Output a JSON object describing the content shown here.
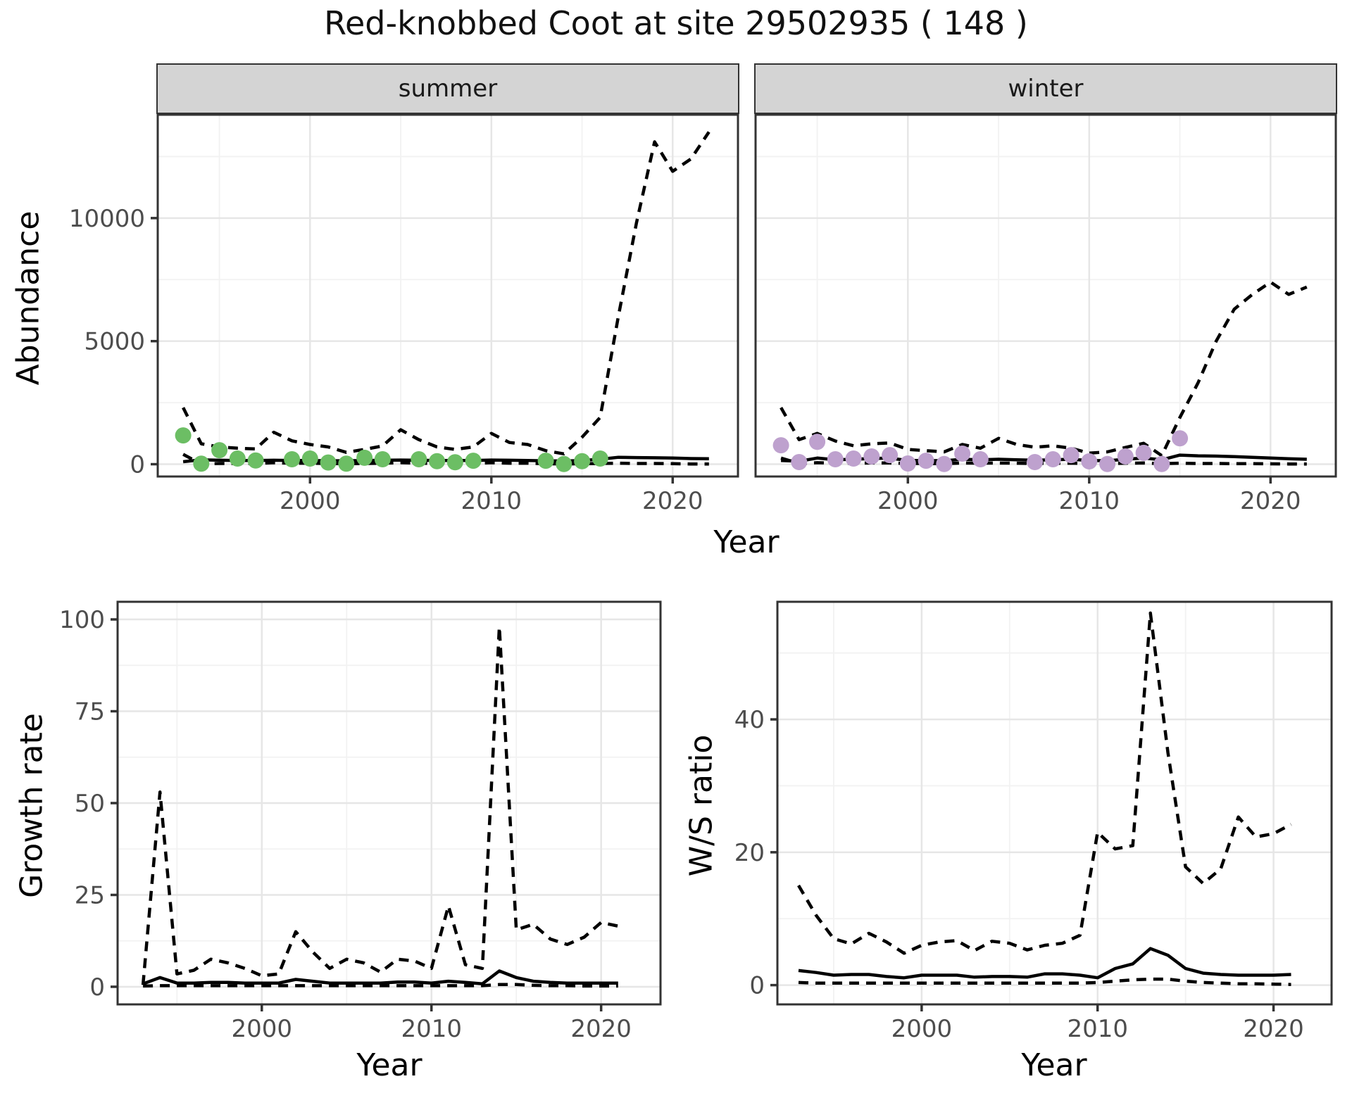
{
  "title": "Red-knobbed Coot at site 29502935 ( 148 )",
  "facets": {
    "summer": "summer",
    "winter": "winter"
  },
  "axes": {
    "abundance": "Abundance",
    "year": "Year",
    "growth_rate": "Growth rate",
    "ws_ratio": "W/S ratio"
  },
  "colors": {
    "summer_point": "#6cbe64",
    "winter_point": "#bea1ce",
    "line": "#000000",
    "strip_bg": "#d4d4d4",
    "grid_major": "#e6e6e6",
    "grid_minor": "#f2f2f2",
    "axis_text": "#4d4d4d",
    "panel_border": "#333333"
  },
  "chart_data": [
    {
      "id": "abundance-summer",
      "type": "line",
      "facet": "summer",
      "xlabel": "Year",
      "ylabel": "Abundance",
      "x_ticks": [
        2000,
        2010,
        2020
      ],
      "y_ticks": [
        0,
        5000,
        10000
      ],
      "xlim": [
        1991.6,
        2023.6
      ],
      "ylim": [
        -500,
        14200
      ],
      "series": [
        {
          "name": "upper_ci",
          "style": "dashed",
          "x": [
            1993,
            1994,
            1995,
            1996,
            1997,
            1998,
            1999,
            2000,
            2001,
            2002,
            2003,
            2004,
            2005,
            2006,
            2007,
            2008,
            2009,
            2010,
            2011,
            2012,
            2013,
            2014,
            2015,
            2016,
            2017,
            2018,
            2019,
            2020,
            2021,
            2022
          ],
          "y": [
            2300,
            830,
            700,
            650,
            620,
            1300,
            950,
            800,
            700,
            480,
            600,
            740,
            1400,
            1000,
            700,
            600,
            700,
            1250,
            880,
            800,
            550,
            420,
            1100,
            1900,
            6000,
            9800,
            13100,
            11900,
            12400,
            13500
          ]
        },
        {
          "name": "lower_ci",
          "style": "dashed",
          "x": [
            1993,
            1994,
            1995,
            1996,
            1997,
            1998,
            1999,
            2000,
            2001,
            2002,
            2003,
            2004,
            2005,
            2006,
            2007,
            2008,
            2009,
            2010,
            2011,
            2012,
            2013,
            2014,
            2015,
            2016,
            2017,
            2018,
            2019,
            2020,
            2021,
            2022
          ],
          "y": [
            400,
            10,
            30,
            30,
            30,
            60,
            40,
            40,
            30,
            20,
            30,
            40,
            60,
            40,
            30,
            30,
            30,
            60,
            40,
            40,
            20,
            10,
            20,
            30,
            40,
            30,
            30,
            20,
            10,
            10
          ]
        },
        {
          "name": "fit",
          "style": "solid",
          "x": [
            1993,
            1994,
            1995,
            1996,
            1997,
            1998,
            1999,
            2000,
            2001,
            2002,
            2003,
            2004,
            2005,
            2006,
            2007,
            2008,
            2009,
            2010,
            2011,
            2012,
            2013,
            2014,
            2015,
            2016,
            2017,
            2018,
            2019,
            2020,
            2021,
            2022
          ],
          "y": [
            100,
            180,
            160,
            150,
            150,
            160,
            150,
            150,
            140,
            140,
            150,
            160,
            170,
            160,
            150,
            150,
            150,
            170,
            160,
            150,
            140,
            130,
            150,
            200,
            280,
            270,
            260,
            250,
            230,
            220
          ]
        },
        {
          "name": "observed",
          "style": "points",
          "color": "#6cbe64",
          "x": [
            1993,
            1994,
            1995,
            1996,
            1997,
            1999,
            2000,
            2001,
            2002,
            2003,
            2004,
            2006,
            2007,
            2008,
            2009,
            2013,
            2014,
            2015,
            2016
          ],
          "y": [
            1170,
            20,
            570,
            230,
            150,
            200,
            230,
            70,
            20,
            260,
            200,
            200,
            120,
            80,
            140,
            140,
            10,
            120,
            230
          ]
        }
      ]
    },
    {
      "id": "abundance-winter",
      "type": "line",
      "facet": "winter",
      "xlabel": "Year",
      "ylabel": "Abundance",
      "x_ticks": [
        2000,
        2010,
        2020
      ],
      "y_ticks": [
        0,
        5000,
        10000
      ],
      "xlim": [
        1991.6,
        2023.6
      ],
      "ylim": [
        -500,
        14200
      ],
      "series": [
        {
          "name": "upper_ci",
          "style": "dashed",
          "x": [
            1993,
            1994,
            1995,
            1996,
            1997,
            1998,
            1999,
            2000,
            2001,
            2002,
            2003,
            2004,
            2005,
            2006,
            2007,
            2008,
            2009,
            2010,
            2011,
            2012,
            2013,
            2014,
            2015,
            2016,
            2017,
            2018,
            2019,
            2020,
            2021,
            2022
          ],
          "y": [
            2300,
            1000,
            1250,
            940,
            750,
            830,
            860,
            600,
            550,
            500,
            800,
            650,
            1050,
            800,
            690,
            750,
            650,
            450,
            500,
            680,
            850,
            350,
            1900,
            3300,
            5000,
            6300,
            6900,
            7400,
            6900,
            7200
          ]
        },
        {
          "name": "lower_ci",
          "style": "dashed",
          "x": [
            1993,
            1994,
            1995,
            1996,
            1997,
            1998,
            1999,
            2000,
            2001,
            2002,
            2003,
            2004,
            2005,
            2006,
            2007,
            2008,
            2009,
            2010,
            2011,
            2012,
            2013,
            2014,
            2015,
            2016,
            2017,
            2018,
            2019,
            2020,
            2021,
            2022
          ],
          "y": [
            250,
            30,
            60,
            40,
            40,
            50,
            50,
            30,
            30,
            20,
            50,
            40,
            50,
            40,
            30,
            40,
            40,
            30,
            20,
            40,
            50,
            20,
            40,
            30,
            30,
            20,
            20,
            15,
            10,
            10
          ]
        },
        {
          "name": "fit",
          "style": "solid",
          "x": [
            1993,
            1994,
            1995,
            1996,
            1997,
            1998,
            1999,
            2000,
            2001,
            2002,
            2003,
            2004,
            2005,
            2006,
            2007,
            2008,
            2009,
            2010,
            2011,
            2012,
            2013,
            2014,
            2015,
            2016,
            2017,
            2018,
            2019,
            2020,
            2021,
            2022
          ],
          "y": [
            150,
            120,
            250,
            180,
            200,
            230,
            250,
            150,
            150,
            140,
            200,
            180,
            200,
            180,
            160,
            180,
            200,
            150,
            140,
            200,
            250,
            180,
            370,
            340,
            330,
            310,
            280,
            250,
            220,
            200
          ]
        },
        {
          "name": "observed",
          "style": "points",
          "color": "#bea1ce",
          "x": [
            1993,
            1994,
            1995,
            1996,
            1997,
            1998,
            1999,
            2000,
            2001,
            2002,
            2003,
            2004,
            2007,
            2008,
            2009,
            2010,
            2011,
            2012,
            2013,
            2014,
            2015
          ],
          "y": [
            770,
            85,
            910,
            200,
            230,
            315,
            370,
            30,
            140,
            10,
            430,
            200,
            85,
            200,
            370,
            115,
            10,
            315,
            460,
            10,
            1050
          ]
        }
      ]
    },
    {
      "id": "growth-rate",
      "type": "line",
      "xlabel": "Year",
      "ylabel": "Growth rate",
      "x_ticks": [
        2000,
        2010,
        2020
      ],
      "y_ticks": [
        0,
        25,
        50,
        75,
        100
      ],
      "xlim": [
        1991.5,
        2023.5
      ],
      "ylim": [
        -4.8,
        104.8
      ],
      "series": [
        {
          "name": "upper_ci",
          "style": "dashed",
          "x": [
            1993,
            1994,
            1995,
            1996,
            1997,
            1998,
            1999,
            2000,
            2001,
            2002,
            2003,
            2004,
            2005,
            2006,
            2007,
            2008,
            2009,
            2010,
            2011,
            2012,
            2013,
            2014,
            2015,
            2016,
            2017,
            2018,
            2019,
            2020,
            2021
          ],
          "y": [
            0.5,
            53,
            3.5,
            4.5,
            7.5,
            6.5,
            5,
            3,
            3.5,
            15,
            9.5,
            5,
            7.5,
            6.5,
            4,
            7.5,
            7,
            5,
            22,
            6,
            5,
            98,
            15.5,
            17,
            13,
            11.5,
            13.5,
            17.5,
            16.5
          ]
        },
        {
          "name": "lower_ci",
          "style": "dashed",
          "x": [
            1993,
            1994,
            1995,
            1996,
            1997,
            1998,
            1999,
            2000,
            2001,
            2002,
            2003,
            2004,
            2005,
            2006,
            2007,
            2008,
            2009,
            2010,
            2011,
            2012,
            2013,
            2014,
            2015,
            2016,
            2017,
            2018,
            2019,
            2020,
            2021
          ],
          "y": [
            0.2,
            0.3,
            0.3,
            0.3,
            0.3,
            0.3,
            0.3,
            0.3,
            0.3,
            0.3,
            0.3,
            0.3,
            0.3,
            0.3,
            0.3,
            0.3,
            0.3,
            0.3,
            0.3,
            0.3,
            0.3,
            0.6,
            0.6,
            0.4,
            0.3,
            0.3,
            0.2,
            0.2,
            0.2
          ]
        },
        {
          "name": "fit",
          "style": "solid",
          "x": [
            1993,
            1994,
            1995,
            1996,
            1997,
            1998,
            1999,
            2000,
            2001,
            2002,
            2003,
            2004,
            2005,
            2006,
            2007,
            2008,
            2009,
            2010,
            2011,
            2012,
            2013,
            2014,
            2015,
            2016,
            2017,
            2018,
            2019,
            2020,
            2021
          ],
          "y": [
            0.8,
            2.5,
            1,
            1,
            1.2,
            1.2,
            1,
            1,
            1,
            2,
            1.5,
            1,
            1,
            1,
            1,
            1.3,
            1.3,
            1,
            1.5,
            1.2,
            0.8,
            4.3,
            2.5,
            1.5,
            1.2,
            1,
            1,
            1,
            1
          ]
        }
      ]
    },
    {
      "id": "ws-ratio",
      "type": "line",
      "xlabel": "Year",
      "ylabel": "W/S ratio",
      "x_ticks": [
        2000,
        2010,
        2020
      ],
      "y_ticks": [
        0,
        20,
        40
      ],
      "xlim": [
        1991.8,
        2023.3
      ],
      "ylim": [
        -2.9,
        57.7
      ],
      "series": [
        {
          "name": "upper_ci",
          "style": "dashed",
          "x": [
            1993,
            1994,
            1995,
            1996,
            1997,
            1998,
            1999,
            2000,
            2001,
            2002,
            2003,
            2004,
            2005,
            2006,
            2007,
            2008,
            2009,
            2010,
            2011,
            2012,
            2013,
            2014,
            2015,
            2016,
            2017,
            2018,
            2019,
            2020,
            2021
          ],
          "y": [
            15,
            10.5,
            7,
            6.2,
            7.8,
            6.5,
            4.8,
            6,
            6.5,
            6.7,
            5.2,
            6.6,
            6.3,
            5.3,
            6,
            6.3,
            7.5,
            23,
            20.5,
            21,
            56,
            35,
            17.8,
            15.3,
            17.5,
            25.3,
            22.3,
            22.8,
            24.2
          ]
        },
        {
          "name": "lower_ci",
          "style": "dashed",
          "x": [
            1993,
            1994,
            1995,
            1996,
            1997,
            1998,
            1999,
            2000,
            2001,
            2002,
            2003,
            2004,
            2005,
            2006,
            2007,
            2008,
            2009,
            2010,
            2011,
            2012,
            2013,
            2014,
            2015,
            2016,
            2017,
            2018,
            2019,
            2020,
            2021
          ],
          "y": [
            0.4,
            0.3,
            0.3,
            0.3,
            0.3,
            0.3,
            0.3,
            0.3,
            0.3,
            0.3,
            0.3,
            0.3,
            0.3,
            0.3,
            0.3,
            0.3,
            0.3,
            0.4,
            0.6,
            0.8,
            0.9,
            0.9,
            0.6,
            0.4,
            0.3,
            0.2,
            0.2,
            0.15,
            0.1
          ]
        },
        {
          "name": "fit",
          "style": "solid",
          "x": [
            1993,
            1994,
            1995,
            1996,
            1997,
            1998,
            1999,
            2000,
            2001,
            2002,
            2003,
            2004,
            2005,
            2006,
            2007,
            2008,
            2009,
            2010,
            2011,
            2012,
            2013,
            2014,
            2015,
            2016,
            2017,
            2018,
            2019,
            2020,
            2021
          ],
          "y": [
            2.2,
            1.9,
            1.5,
            1.6,
            1.6,
            1.3,
            1.1,
            1.5,
            1.5,
            1.5,
            1.2,
            1.3,
            1.3,
            1.2,
            1.7,
            1.7,
            1.5,
            1.1,
            2.5,
            3.2,
            5.5,
            4.5,
            2.5,
            1.8,
            1.6,
            1.5,
            1.5,
            1.5,
            1.6
          ]
        }
      ]
    }
  ]
}
